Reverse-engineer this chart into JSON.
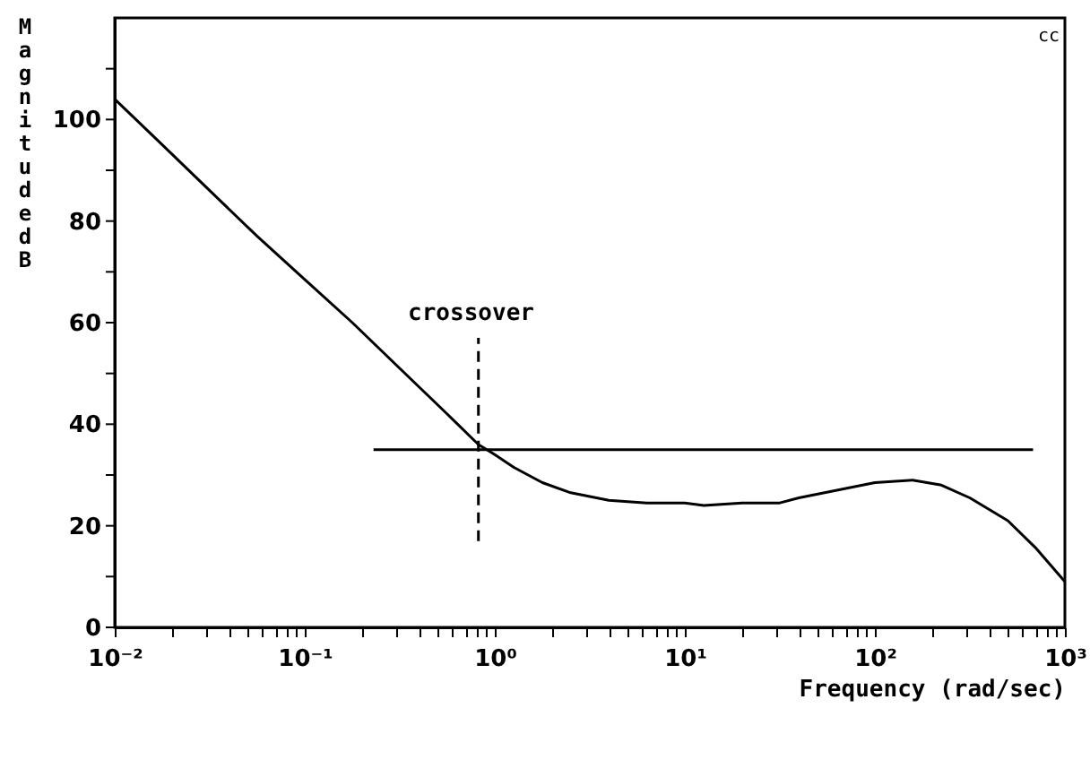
{
  "chart_data": {
    "type": "line",
    "xlabel": "Frequency (rad/sec)",
    "ylabel": "Magnitude dB",
    "log": "x",
    "grid": false,
    "xlim": [
      0.01,
      1000
    ],
    "ylim": [
      0,
      120
    ],
    "xticks": [
      {
        "value": 0.01,
        "label": "10⁻²"
      },
      {
        "value": 0.02,
        "label": null
      },
      {
        "value": 0.03,
        "label": null
      },
      {
        "value": 0.04,
        "label": null
      },
      {
        "value": 0.05,
        "label": null
      },
      {
        "value": 0.06,
        "label": null
      },
      {
        "value": 0.07,
        "label": null
      },
      {
        "value": 0.08,
        "label": null
      },
      {
        "value": 0.09,
        "label": null
      },
      {
        "value": 0.1,
        "label": "10⁻¹"
      },
      {
        "value": 0.2,
        "label": null
      },
      {
        "value": 0.3,
        "label": null
      },
      {
        "value": 0.4,
        "label": null
      },
      {
        "value": 0.5,
        "label": null
      },
      {
        "value": 0.6,
        "label": null
      },
      {
        "value": 0.7,
        "label": null
      },
      {
        "value": 0.8,
        "label": null
      },
      {
        "value": 0.9,
        "label": null
      },
      {
        "value": 1,
        "label": "10⁰"
      },
      {
        "value": 2,
        "label": null
      },
      {
        "value": 3,
        "label": null
      },
      {
        "value": 4,
        "label": null
      },
      {
        "value": 5,
        "label": null
      },
      {
        "value": 6,
        "label": null
      },
      {
        "value": 7,
        "label": null
      },
      {
        "value": 8,
        "label": null
      },
      {
        "value": 9,
        "label": null
      },
      {
        "value": 10,
        "label": "10¹"
      },
      {
        "value": 20,
        "label": null
      },
      {
        "value": 30,
        "label": null
      },
      {
        "value": 40,
        "label": null
      },
      {
        "value": 50,
        "label": null
      },
      {
        "value": 60,
        "label": null
      },
      {
        "value": 70,
        "label": null
      },
      {
        "value": 80,
        "label": null
      },
      {
        "value": 90,
        "label": null
      },
      {
        "value": 100,
        "label": "10²"
      },
      {
        "value": 200,
        "label": null
      },
      {
        "value": 300,
        "label": null
      },
      {
        "value": 400,
        "label": null
      },
      {
        "value": 500,
        "label": null
      },
      {
        "value": 600,
        "label": null
      },
      {
        "value": 700,
        "label": null
      },
      {
        "value": 800,
        "label": null
      },
      {
        "value": 900,
        "label": null
      },
      {
        "value": 1000,
        "label": "10³"
      }
    ],
    "yticks": [
      0,
      {
        "value": 10,
        "label": null
      },
      20,
      {
        "value": 30,
        "label": null
      },
      40,
      {
        "value": 50,
        "label": null
      },
      60,
      {
        "value": 70,
        "label": null
      },
      80,
      {
        "value": 90,
        "label": null
      },
      100,
      {
        "value": 110,
        "label": null
      }
    ],
    "series": [
      {
        "color": "#000000",
        "x": [
          0.01,
          0.0178,
          0.0316,
          0.0562,
          0.1,
          0.178,
          0.316,
          0.562,
          0.82,
          1,
          1.26,
          1.78,
          2.51,
          3.98,
          6.31,
          10,
          12.6,
          20,
          31.6,
          39.8,
          63.1,
          100,
          158,
          224,
          316,
          501,
          708,
          1000
        ],
        "values": [
          104,
          95,
          86,
          77,
          68.5,
          60,
          51,
          42,
          36,
          34,
          31.5,
          28.5,
          26.5,
          25,
          24.5,
          24.5,
          24,
          24.5,
          24.5,
          25.5,
          27,
          28.5,
          29,
          28,
          25.5,
          21,
          15.5,
          9
        ]
      },
      {
        "color": "#000000",
        "x": [
          0.23,
          680
        ],
        "values": [
          35,
          35
        ]
      },
      {
        "color": "#000000",
        "line_style": "dashed",
        "x": [
          0.82,
          0.82
        ],
        "values": [
          17,
          57
        ]
      }
    ],
    "annotations": [
      "crossover",
      "cc"
    ]
  }
}
